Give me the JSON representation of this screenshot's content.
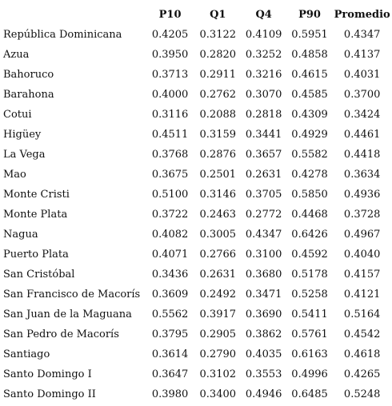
{
  "table": {
    "headers": [
      "",
      "P10",
      "Q1",
      "Q4",
      "P90",
      "Promedio"
    ],
    "rows": [
      {
        "name": "República Dominicana",
        "values": [
          "0.4205",
          "0.3122",
          "0.4109",
          "0.5951",
          "0.4347"
        ]
      },
      {
        "name": "Azua",
        "values": [
          "0.3950",
          "0.2820",
          "0.3252",
          "0.4858",
          "0.4137"
        ]
      },
      {
        "name": "Bahoruco",
        "values": [
          "0.3713",
          "0.2911",
          "0.3216",
          "0.4615",
          "0.4031"
        ]
      },
      {
        "name": "Barahona",
        "values": [
          "0.4000",
          "0.2762",
          "0.3070",
          "0.4585",
          "0.3700"
        ]
      },
      {
        "name": "Cotui",
        "values": [
          "0.3116",
          "0.2088",
          "0.2818",
          "0.4309",
          "0.3424"
        ]
      },
      {
        "name": "Higüey",
        "values": [
          "0.4511",
          "0.3159",
          "0.3441",
          "0.4929",
          "0.4461"
        ]
      },
      {
        "name": "La Vega",
        "values": [
          "0.3768",
          "0.2876",
          "0.3657",
          "0.5582",
          "0.4418"
        ]
      },
      {
        "name": "Mao",
        "values": [
          "0.3675",
          "0.2501",
          "0.2631",
          "0.4278",
          "0.3634"
        ]
      },
      {
        "name": "Monte Cristi",
        "values": [
          "0.5100",
          "0.3146",
          "0.3705",
          "0.5850",
          "0.4936"
        ]
      },
      {
        "name": "Monte Plata",
        "values": [
          "0.3722",
          "0.2463",
          "0.2772",
          "0.4468",
          "0.3728"
        ]
      },
      {
        "name": "Nagua",
        "values": [
          "0.4082",
          "0.3005",
          "0.4347",
          "0.6426",
          "0.4967"
        ]
      },
      {
        "name": "Puerto Plata",
        "values": [
          "0.4071",
          "0.2766",
          "0.3100",
          "0.4592",
          "0.4040"
        ]
      },
      {
        "name": "San Cristóbal",
        "values": [
          "0.3436",
          "0.2631",
          "0.3680",
          "0.5178",
          "0.4157"
        ]
      },
      {
        "name": "San Francisco de Macorís",
        "values": [
          "0.3609",
          "0.2492",
          "0.3471",
          "0.5258",
          "0.4121"
        ]
      },
      {
        "name": "San Juan de la Maguana",
        "values": [
          "0.5562",
          "0.3917",
          "0.3690",
          "0.5411",
          "0.5164"
        ]
      },
      {
        "name": "San Pedro de Macorís",
        "values": [
          "0.3795",
          "0.2905",
          "0.3862",
          "0.5761",
          "0.4542"
        ]
      },
      {
        "name": "Santiago",
        "values": [
          "0.3614",
          "0.2790",
          "0.4035",
          "0.6163",
          "0.4618"
        ]
      },
      {
        "name": "Santo Domingo I",
        "values": [
          "0.3647",
          "0.3102",
          "0.3553",
          "0.4996",
          "0.4265"
        ]
      },
      {
        "name": "Santo Domingo II",
        "values": [
          "0.3980",
          "0.3400",
          "0.4946",
          "0.6485",
          "0.5248"
        ]
      }
    ]
  }
}
